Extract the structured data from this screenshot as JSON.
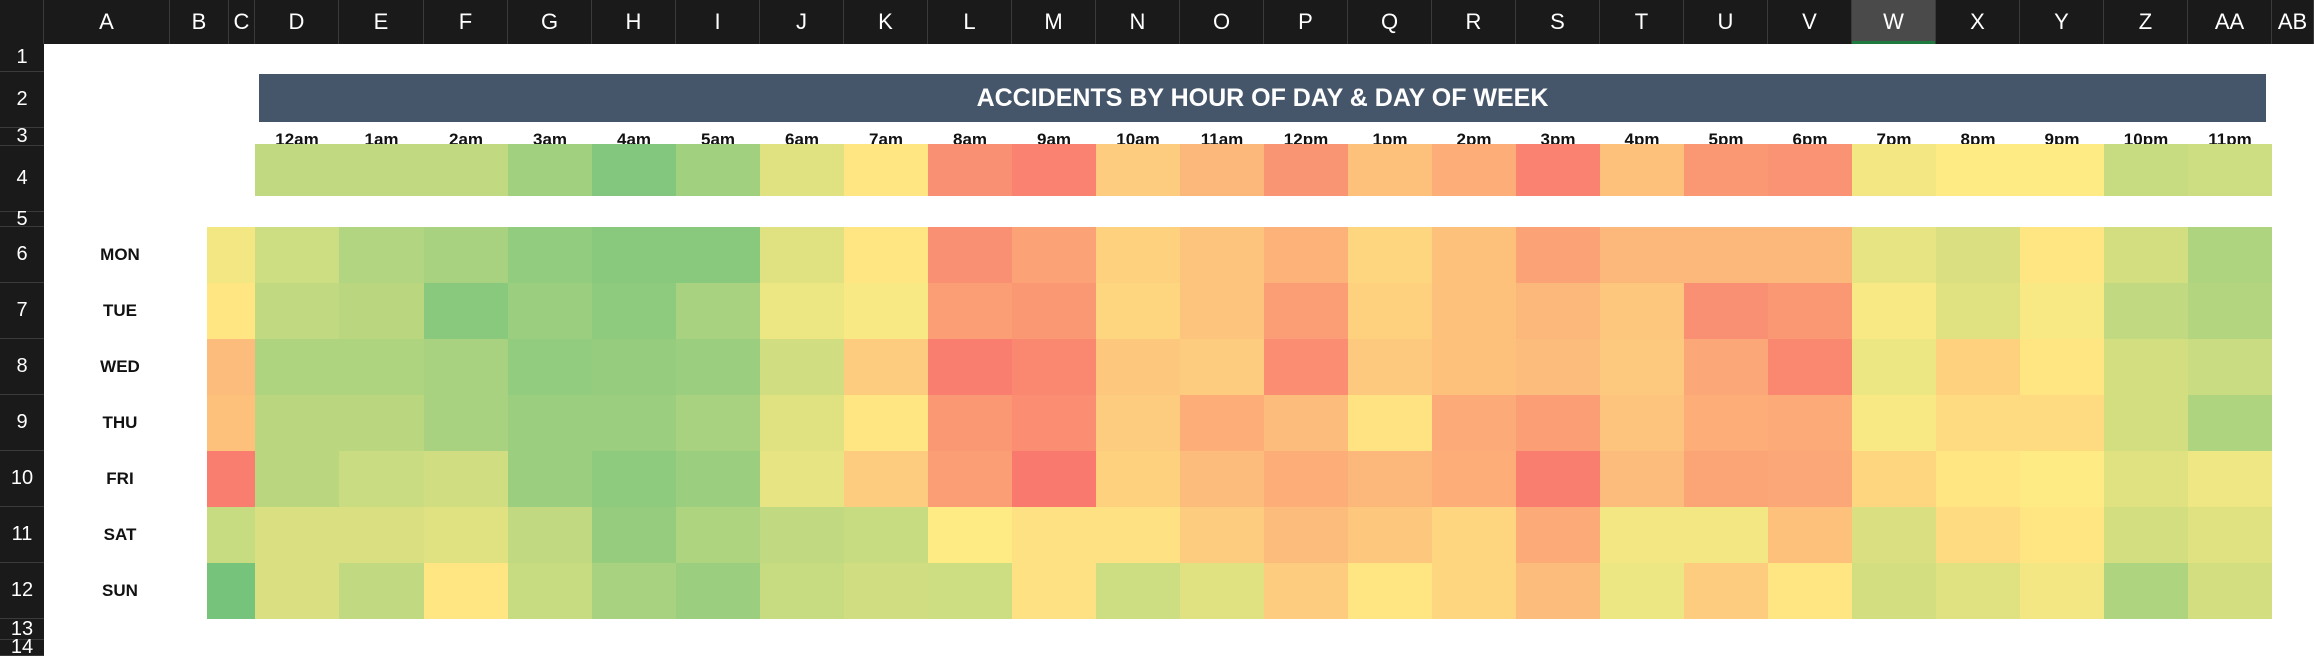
{
  "columns": [
    "A",
    "B",
    "C",
    "D",
    "E",
    "F",
    "G",
    "H",
    "I",
    "J",
    "K",
    "L",
    "M",
    "N",
    "O",
    "P",
    "Q",
    "R",
    "S",
    "T",
    "U",
    "V",
    "W",
    "X",
    "Y",
    "Z",
    "AA",
    "AB"
  ],
  "selected_column": "W",
  "rows": [
    "1",
    "2",
    "3",
    "4",
    "5",
    "6",
    "7",
    "8",
    "9",
    "10",
    "11",
    "12",
    "13",
    "14"
  ],
  "title": "ACCIDENTS BY HOUR OF DAY & DAY OF WEEK",
  "hours": [
    "12am",
    "1am",
    "2am",
    "3am",
    "4am",
    "5am",
    "6am",
    "7am",
    "8am",
    "9am",
    "10am",
    "11am",
    "12pm",
    "1pm",
    "2pm",
    "3pm",
    "4pm",
    "5pm",
    "6pm",
    "7pm",
    "8pm",
    "9pm",
    "10pm",
    "11pm"
  ],
  "days": [
    "MON",
    "TUE",
    "WED",
    "THU",
    "FRI",
    "SAT",
    "SUN"
  ],
  "color_scale": {
    "low": "#63be7b",
    "mid": "#ffeb84",
    "high": "#f8696b"
  },
  "chart_data": {
    "type": "heatmap",
    "title": "ACCIDENTS BY HOUR OF DAY & DAY OF WEEK",
    "x_categories": [
      "12am",
      "1am",
      "2am",
      "3am",
      "4am",
      "5am",
      "6am",
      "7am",
      "8am",
      "9am",
      "10am",
      "11am",
      "12pm",
      "1pm",
      "2pm",
      "3pm",
      "4pm",
      "5pm",
      "6pm",
      "7pm",
      "8pm",
      "9pm",
      "10pm",
      "11pm"
    ],
    "y_categories": [
      "MON",
      "TUE",
      "WED",
      "THU",
      "FRI",
      "SAT",
      "SUN"
    ],
    "hour_totals": [
      0.3,
      0.3,
      0.3,
      0.2,
      0.1,
      0.2,
      0.4,
      0.52,
      0.85,
      0.9,
      0.62,
      0.7,
      0.83,
      0.66,
      0.74,
      0.9,
      0.66,
      0.82,
      0.84,
      0.46,
      0.5,
      0.5,
      0.32,
      0.34
    ],
    "day_totals": [
      0.46,
      0.52,
      0.68,
      0.66,
      0.92,
      0.32,
      0.06
    ],
    "values": [
      [
        0.34,
        0.25,
        0.22,
        0.15,
        0.12,
        0.12,
        0.4,
        0.52,
        0.85,
        0.78,
        0.6,
        0.65,
        0.72,
        0.58,
        0.66,
        0.78,
        0.7,
        0.7,
        0.7,
        0.42,
        0.38,
        0.52,
        0.36,
        0.24
      ],
      [
        0.3,
        0.28,
        0.12,
        0.18,
        0.14,
        0.22,
        0.44,
        0.48,
        0.8,
        0.82,
        0.58,
        0.65,
        0.8,
        0.6,
        0.66,
        0.7,
        0.64,
        0.85,
        0.82,
        0.48,
        0.4,
        0.48,
        0.3,
        0.26
      ],
      [
        0.24,
        0.24,
        0.22,
        0.15,
        0.16,
        0.18,
        0.35,
        0.62,
        0.92,
        0.88,
        0.64,
        0.62,
        0.86,
        0.63,
        0.66,
        0.68,
        0.63,
        0.76,
        0.88,
        0.44,
        0.6,
        0.52,
        0.36,
        0.33
      ],
      [
        0.28,
        0.28,
        0.22,
        0.18,
        0.18,
        0.22,
        0.4,
        0.52,
        0.82,
        0.86,
        0.62,
        0.74,
        0.68,
        0.53,
        0.75,
        0.8,
        0.65,
        0.74,
        0.75,
        0.48,
        0.56,
        0.56,
        0.36,
        0.24
      ],
      [
        0.28,
        0.33,
        0.35,
        0.18,
        0.14,
        0.18,
        0.42,
        0.62,
        0.8,
        0.94,
        0.6,
        0.68,
        0.74,
        0.7,
        0.74,
        0.92,
        0.68,
        0.77,
        0.76,
        0.58,
        0.52,
        0.5,
        0.4,
        0.45
      ],
      [
        0.38,
        0.38,
        0.4,
        0.3,
        0.16,
        0.24,
        0.3,
        0.32,
        0.5,
        0.54,
        0.54,
        0.62,
        0.68,
        0.64,
        0.58,
        0.75,
        0.46,
        0.46,
        0.66,
        0.38,
        0.56,
        0.52,
        0.36,
        0.4
      ],
      [
        0.38,
        0.3,
        0.52,
        0.32,
        0.22,
        0.18,
        0.32,
        0.35,
        0.34,
        0.54,
        0.34,
        0.4,
        0.62,
        0.52,
        0.58,
        0.68,
        0.44,
        0.62,
        0.52,
        0.36,
        0.4,
        0.46,
        0.24,
        0.36
      ]
    ]
  }
}
